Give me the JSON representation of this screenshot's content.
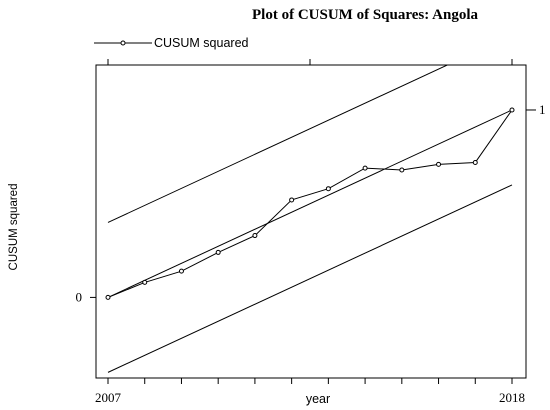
{
  "chart_data": {
    "type": "line",
    "title": "Plot of CUSUM of Squares: Angola",
    "xlabel": "year",
    "ylabel": "CUSUM squared",
    "xlim": [
      2007,
      2018
    ],
    "ylim": [
      -0.43,
      1.24
    ],
    "x_ticks": [
      2007,
      2018
    ],
    "y_ticks": [
      0,
      1
    ],
    "grid": false,
    "legend_position": "top-left",
    "series": [
      {
        "name": "CUSUM squared",
        "x": [
          2007,
          2008,
          2009,
          2010,
          2011,
          2012,
          2013,
          2014,
          2015,
          2016,
          2017,
          2018
        ],
        "values": [
          0.0,
          0.08,
          0.14,
          0.24,
          0.33,
          0.52,
          0.58,
          0.69,
          0.68,
          0.71,
          0.72,
          1.0
        ]
      }
    ],
    "reference_lines": {
      "expected": {
        "from": [
          2007,
          0.0
        ],
        "to": [
          2018,
          1.0
        ]
      },
      "upper_bound": {
        "from": [
          2007,
          0.4
        ],
        "to": [
          2018,
          1.4
        ]
      },
      "lower_bound": {
        "from": [
          2007,
          -0.4
        ],
        "to": [
          2018,
          0.6
        ]
      }
    }
  }
}
